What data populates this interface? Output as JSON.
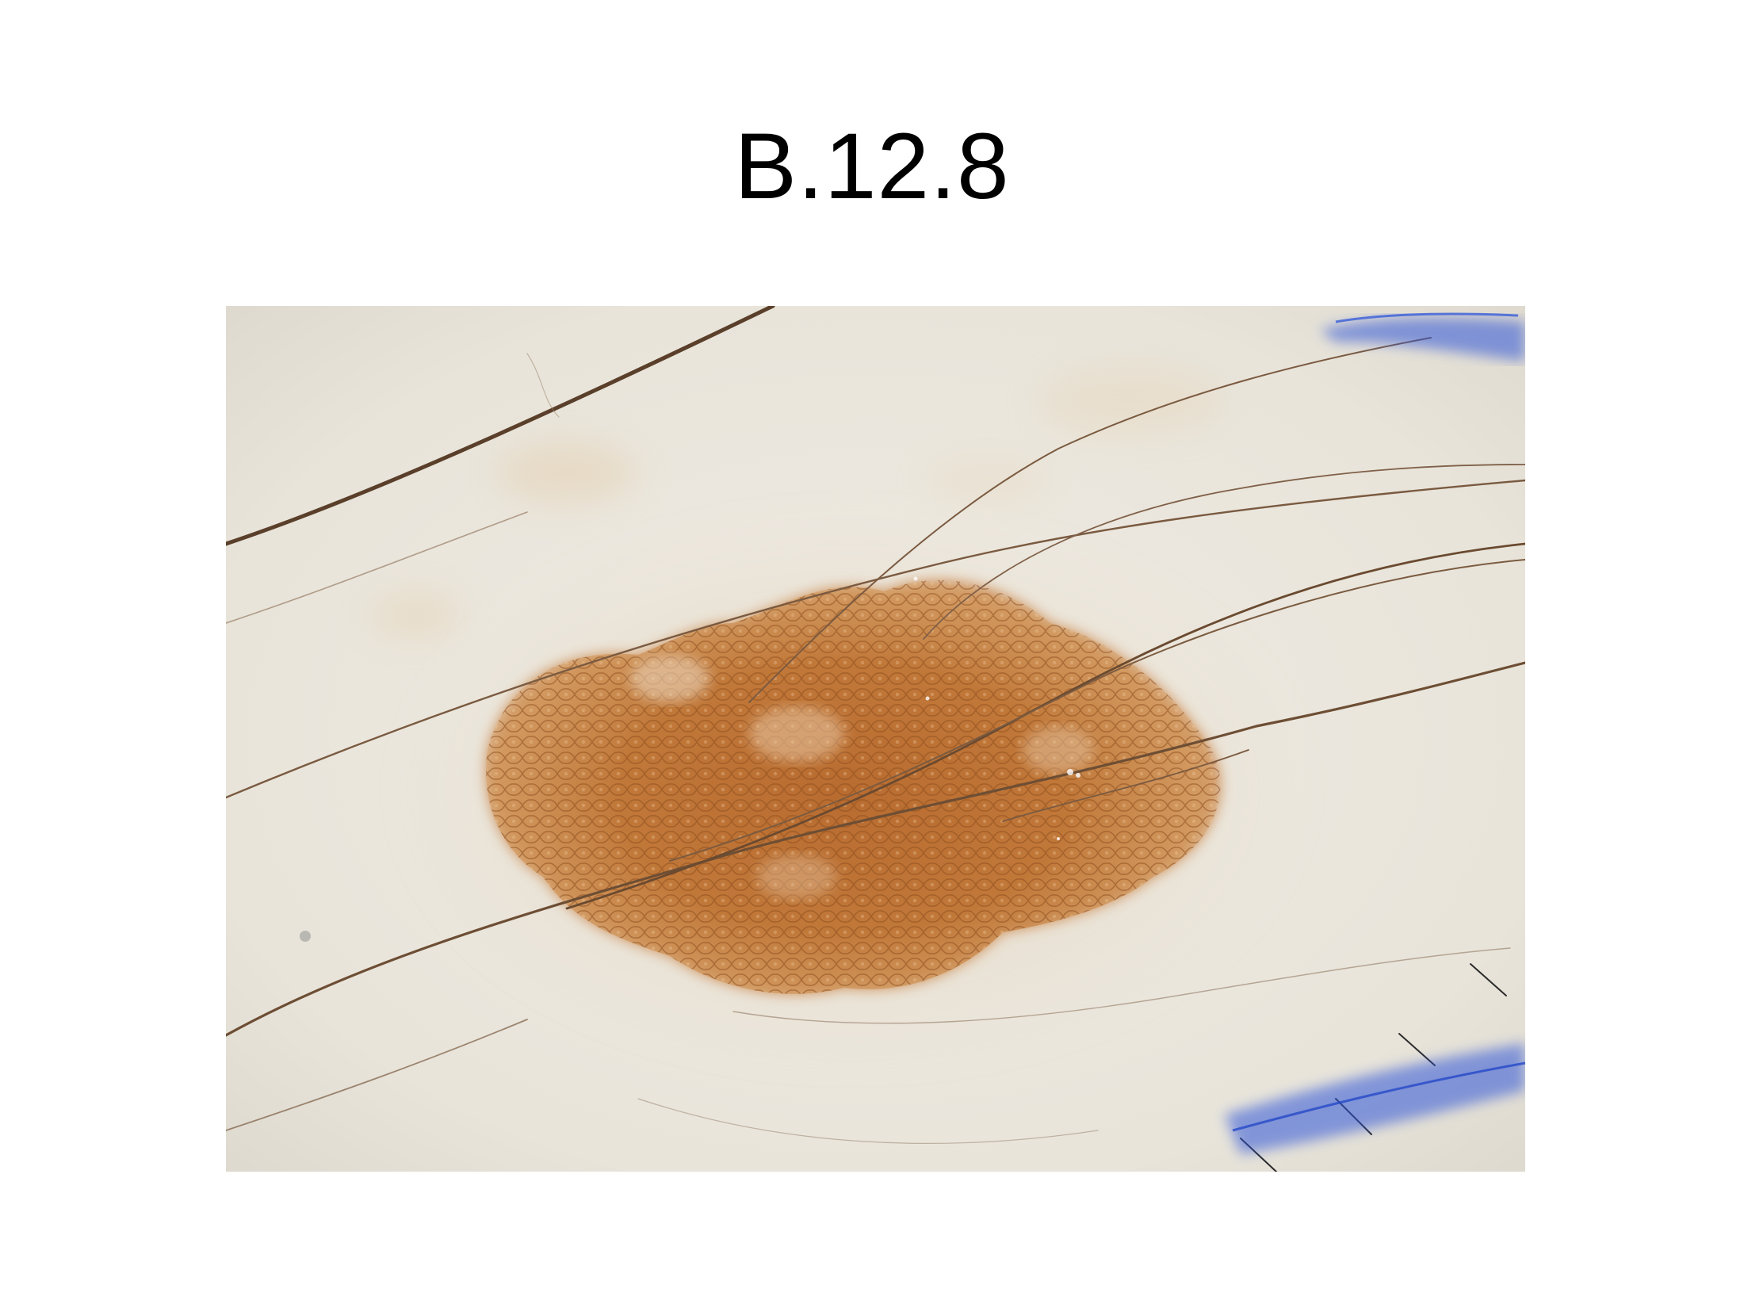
{
  "slide": {
    "title": "B.12.8"
  },
  "photo": {
    "kind": "dermoscopy image of a pigmented skin lesion",
    "colors": {
      "skin": "#ebe7de",
      "lesion_core": "#b86a2e",
      "lesion_edge": "#d9a46c",
      "hair": "#6a4a30",
      "ink": "#2f55d8"
    }
  }
}
